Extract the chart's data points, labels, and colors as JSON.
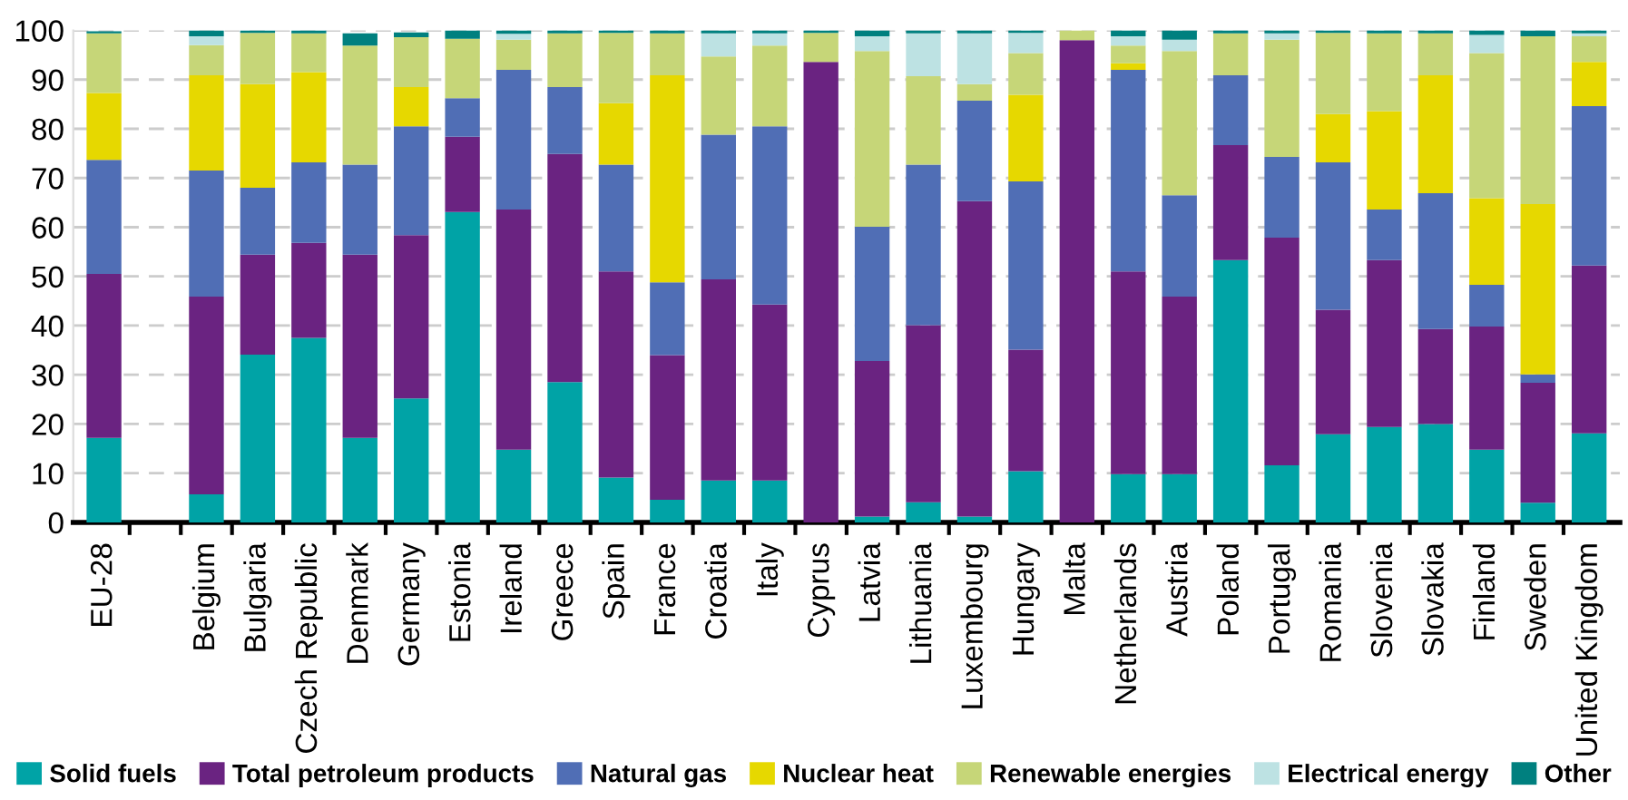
{
  "chart_data": {
    "type": "bar",
    "stacked": true,
    "categories": [
      "EU-28",
      null,
      "Belgium",
      "Bulgaria",
      "Czech Republic",
      "Denmark",
      "Germany",
      "Estonia",
      "Ireland",
      "Greece",
      "Spain",
      "France",
      "Croatia",
      "Italy",
      "Cyprus",
      "Latvia",
      "Lithuania",
      "Luxembourg",
      "Hungary",
      "Malta",
      "Netherlands",
      "Austria",
      "Poland",
      "Portugal",
      "Romania",
      "Slovenia",
      "Slovakia",
      "Finland",
      "Sweden",
      "United Kingdom"
    ],
    "series": [
      {
        "name": "Solid fuels",
        "color": "#00a3a6",
        "values": [
          17.2,
          null,
          5.7,
          34.1,
          37.5,
          17.2,
          25.2,
          63.1,
          14.8,
          28.5,
          9.1,
          4.6,
          8.5,
          8.5,
          0,
          1.2,
          4.1,
          1.2,
          10.4,
          0,
          9.8,
          9.8,
          53.3,
          11.6,
          17.9,
          19.4,
          20.0,
          14.8,
          4.0,
          18.1
        ]
      },
      {
        "name": "Total petroleum products",
        "color": "#6a2381",
        "values": [
          33.3,
          null,
          40.2,
          20.3,
          19.3,
          37.2,
          33.2,
          15.3,
          48.8,
          46.4,
          41.9,
          29.4,
          40.9,
          35.8,
          93.6,
          31.6,
          36.0,
          64.1,
          24.7,
          98.0,
          41.2,
          36.1,
          23.4,
          46.3,
          25.3,
          33.9,
          19.3,
          25.0,
          24.4,
          34.1
        ]
      },
      {
        "name": "Natural gas",
        "color": "#506eb5",
        "values": [
          23.2,
          null,
          25.6,
          13.6,
          16.4,
          18.3,
          22.1,
          7.8,
          28.4,
          13.6,
          21.7,
          14.8,
          29.4,
          36.2,
          0,
          27.3,
          32.6,
          20.4,
          34.2,
          0,
          41.0,
          20.6,
          14.2,
          16.4,
          30.0,
          10.3,
          27.6,
          8.5,
          1.7,
          32.4
        ]
      },
      {
        "name": "Nuclear heat",
        "color": "#e6d800",
        "values": [
          13.6,
          null,
          19.4,
          21.1,
          18.3,
          0,
          8.0,
          0,
          0,
          0,
          12.5,
          42.1,
          0,
          0,
          0,
          0,
          0,
          0,
          17.6,
          0,
          1.3,
          0,
          0,
          0,
          9.8,
          20.0,
          24.0,
          17.6,
          34.6,
          9.0
        ]
      },
      {
        "name": "Renewable energies",
        "color": "#c6d678",
        "values": [
          12.1,
          null,
          6.1,
          10.4,
          7.9,
          24.2,
          10.1,
          12.1,
          6.1,
          10.9,
          14.3,
          8.5,
          15.9,
          16.4,
          5.9,
          35.7,
          18.0,
          3.4,
          8.5,
          2.0,
          3.6,
          29.3,
          8.5,
          23.8,
          16.5,
          15.8,
          8.5,
          29.5,
          34.1,
          5.2
        ]
      },
      {
        "name": "Electrical energy",
        "color": "#bde2e3",
        "values": [
          null,
          null,
          1.8,
          0,
          0,
          null,
          null,
          0,
          1.2,
          0,
          0,
          0,
          4.7,
          2.5,
          0,
          3.0,
          8.7,
          10.3,
          4.1,
          0,
          1.9,
          2.3,
          0,
          1.3,
          0,
          0,
          0,
          3.7,
          0,
          0.6
        ]
      },
      {
        "name": "Other",
        "color": "#00807f",
        "values": [
          0.4,
          null,
          1.2,
          0.5,
          0.6,
          2.5,
          1.0,
          1.7,
          0.7,
          0.6,
          0.5,
          0.6,
          0.6,
          0.6,
          0.5,
          1.2,
          0.6,
          0.6,
          0.5,
          0,
          1.2,
          1.9,
          0.6,
          0.6,
          0.5,
          0.6,
          0.6,
          0.9,
          1.2,
          0.6
        ]
      }
    ],
    "ylim": [
      0,
      100
    ],
    "yticks": [
      0,
      10,
      20,
      30,
      40,
      50,
      60,
      70,
      80,
      90,
      100
    ],
    "grid": "y",
    "legend": "bottom"
  }
}
